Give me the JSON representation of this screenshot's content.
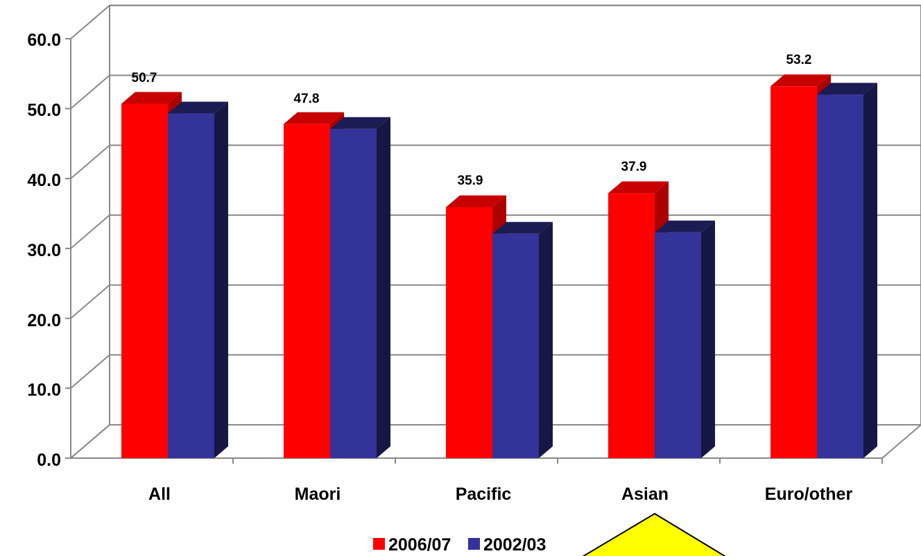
{
  "chart_data": {
    "type": "bar",
    "categories": [
      "All",
      "Maori",
      "Pacific",
      "Asian",
      "Euro/other"
    ],
    "series": [
      {
        "name": "2006/07",
        "color": "#ff0000",
        "values": [
          50.7,
          47.8,
          35.9,
          37.9,
          53.2
        ],
        "data_labels": [
          "50.7",
          "47.8",
          "35.9",
          "37.9",
          "53.2"
        ]
      },
      {
        "name": "2002/03",
        "color": "#333399",
        "values": [
          49.3,
          47.1,
          32.1,
          32.3,
          52.0
        ]
      }
    ],
    "yticks": [
      "0.0",
      "10.0",
      "20.0",
      "30.0",
      "40.0",
      "50.0",
      "60.0"
    ],
    "ylim": [
      0,
      60
    ],
    "grid": true,
    "legend_position": "bottom",
    "three_d": true
  }
}
